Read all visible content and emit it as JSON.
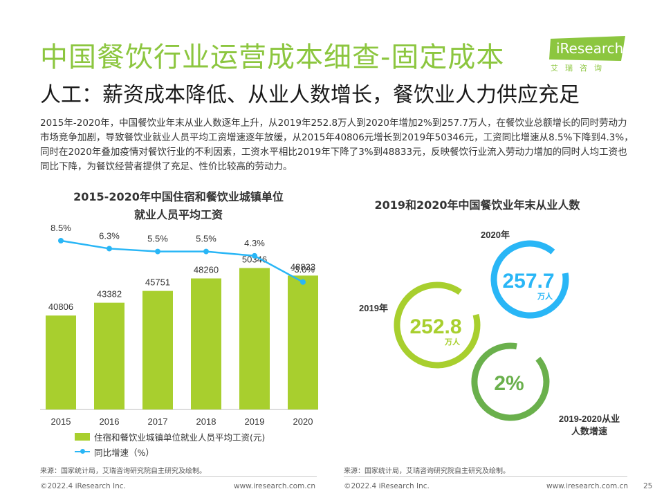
{
  "header": {
    "title": "中国餐饮行业运营成本细查-固定成本",
    "subtitle": "人工：薪资成本降低、从业人数增长，餐饮业人力供应充足",
    "logo_text": "iResearch",
    "logo_sub": "艾瑞咨询",
    "logo_color": "#8cc63f"
  },
  "description": "2015年-2020年，中国餐饮业年末从业人数逐年上升，从2019年252.8万人到2020年增加2%到257.7万人，在餐饮业总额增长的同时劳动力市场竞争加剧，导致餐饮业就业人员平均工资增速逐年放缓，从2015年40806元增长到2019年50346元，工资同比增速从8.5%下降到4.3%，同时在2020年叠加疫情对餐饮行业的不利因素，工资水平相比2019年下降了3%到48833元，反映餐饮行业流入劳动力增加的同时人均工资也同比下降，为餐饮经营者提供了充足、性价比较高的劳动力。",
  "left_chart_title_line1": "2015-2020年中国住宿和餐饮业城镇单位",
  "left_chart_title_line2": "就业人员平均工资",
  "right_chart_title": "2019和2020年中国餐饮业年末从业人数",
  "legend": {
    "bar_label": "住宿和餐饮业城镇单位就业人员平均工资(元)",
    "line_label": "同比增速（%）"
  },
  "sources": {
    "left": "来源：国家统计局，艾瑞咨询研究院自主研究及绘制。",
    "right": "来源：国家统计局，艾瑞咨询研究院自主研究及绘制。"
  },
  "footer": {
    "copyright_left": "©2022.4 iResearch Inc.",
    "website_left": "www.iresearch.com.cn",
    "copyright_right": "©2022.4 iResearch Inc.",
    "website_right": "www.iresearch.com.cn",
    "page_number": "25"
  },
  "chart_data": [
    {
      "type": "bar",
      "categories": [
        "2015",
        "2016",
        "2017",
        "2018",
        "2019",
        "2020"
      ],
      "series": [
        {
          "name": "住宿和餐饮业城镇单位就业人员平均工资(元)",
          "type": "bar",
          "values": [
            40806,
            43382,
            45751,
            48260,
            50346,
            48833
          ],
          "color": "#a8cf2e"
        },
        {
          "name": "同比增速（%）",
          "type": "line",
          "values": [
            8.5,
            6.3,
            5.5,
            5.5,
            4.3,
            -3.0
          ],
          "labels": [
            "8.5%",
            "6.3%",
            "5.5%",
            "5.5%",
            "4.3%",
            "-3.0%"
          ],
          "color": "#29b6f6"
        }
      ]
    },
    {
      "type": "ring",
      "items": [
        {
          "label": "2020年",
          "value": "257.7",
          "unit": "万人",
          "color": "#29b6f6"
        },
        {
          "label": "2019年",
          "value": "252.8",
          "unit": "万人",
          "color": "#a8cf2e"
        },
        {
          "label": "2019-2020从业\n人数增速",
          "label_line1": "2019-2020从业",
          "label_line2": "人数增速",
          "value": "2%",
          "unit": "",
          "color": "#6ab04c"
        }
      ]
    }
  ]
}
